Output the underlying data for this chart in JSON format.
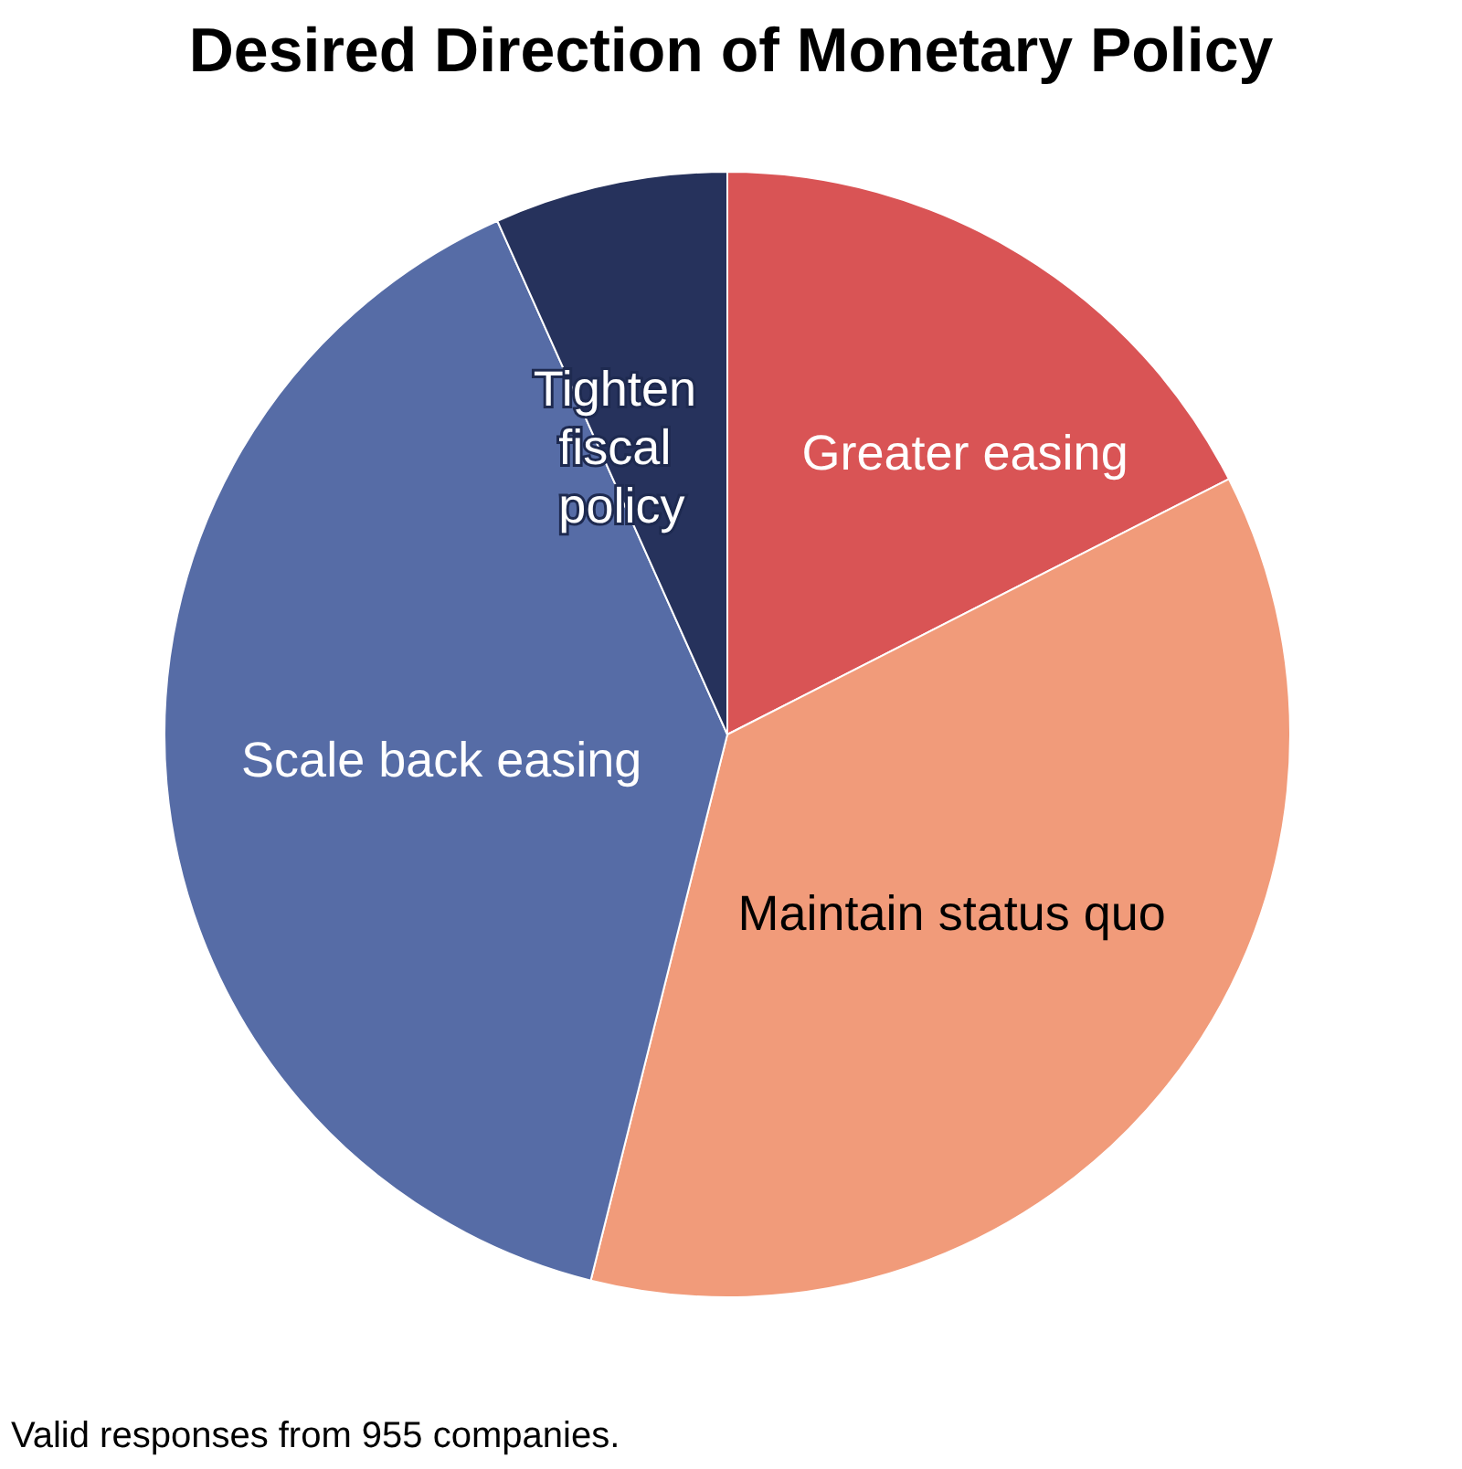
{
  "chart_data": {
    "type": "pie",
    "title": "Desired Direction of Monetary Policy",
    "categories": [
      "Greater easing",
      "Maintain status quo",
      "Scale back easing",
      "Tighten fiscal policy"
    ],
    "values": [
      17.5,
      36.4,
      39.4,
      6.7
    ],
    "colors": [
      "#d95455",
      "#f19b7a",
      "#566ca6",
      "#26325c"
    ],
    "annotations": [
      "Valid responses from 955 companies."
    ]
  }
}
